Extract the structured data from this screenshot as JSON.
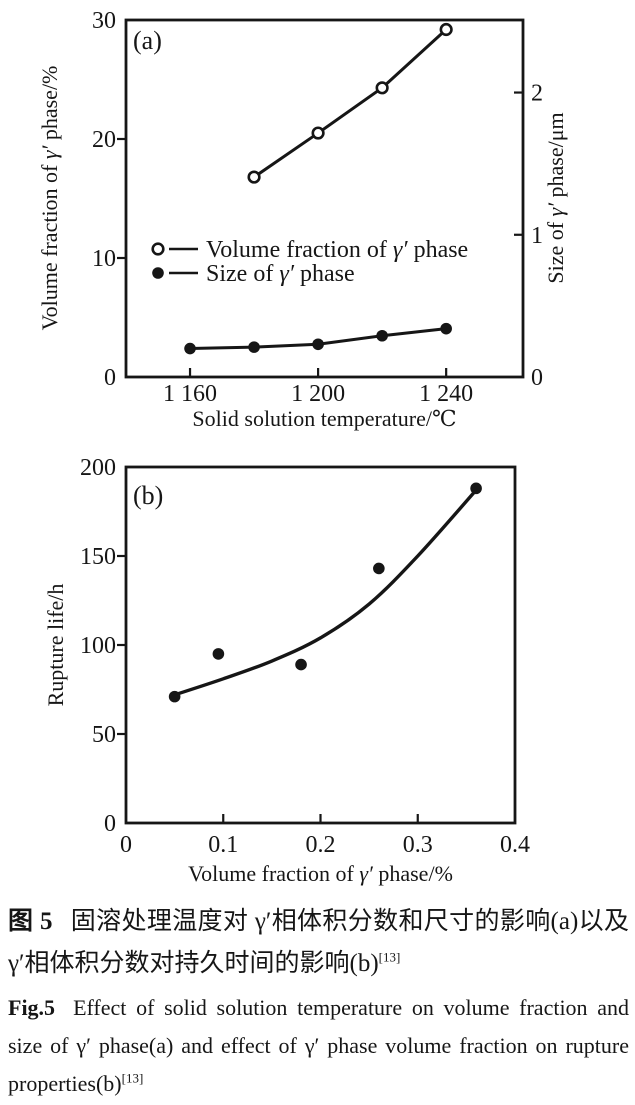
{
  "page": {
    "background": "#ffffff",
    "ink": "#161616"
  },
  "figure": {
    "caption": {
      "zh": {
        "label": "图 5",
        "text": "固溶处理温度对 γ′相体积分数和尺寸的影响(a)以及 γ′相体积分数对持久时间的影响(b)",
        "sup": "[13]"
      },
      "en": {
        "label": "Fig.5",
        "text": "Effect of solid solution temperature on volume fraction and size of γ′ phase(a) and effect of γ′ phase volume fraction on rupture properties(b)",
        "sup": "[13]"
      }
    }
  },
  "chart_data": [
    {
      "id": "a",
      "type": "line",
      "panel_label": "(a)",
      "xlabel": "Solid solution temperature/℃",
      "ylabel": "Volume fraction of γ′ phase/%",
      "y2label": "Size of γ′ phase/μm",
      "xlim": [
        1140,
        1264
      ],
      "ylim": [
        0,
        30
      ],
      "y2lim": [
        0,
        2.51
      ],
      "grid": false,
      "legend_position": "center-left",
      "x_ticks": [
        {
          "v": 1160,
          "label": "1 160",
          "mark": true
        },
        {
          "v": 1200,
          "label": "1 200",
          "mark": true
        },
        {
          "v": 1240,
          "label": "1 240",
          "mark": true
        }
      ],
      "y_ticks": [
        {
          "v": 0,
          "label": "0",
          "mark": false
        },
        {
          "v": 10,
          "label": "10",
          "mark": true
        },
        {
          "v": 20,
          "label": "20",
          "mark": true
        },
        {
          "v": 30,
          "label": "30",
          "mark": false
        }
      ],
      "y2_ticks": [
        {
          "v": 0,
          "label": "0",
          "mark": false
        },
        {
          "v": 1,
          "label": "1",
          "mark": true
        },
        {
          "v": 2,
          "label": "2",
          "mark": true
        }
      ],
      "series": [
        {
          "name": "Volume fraction of γ′ phase",
          "axis": "y",
          "marker": "open-circle",
          "x": [
            1180,
            1200,
            1220,
            1240
          ],
          "y": [
            16.8,
            20.5,
            24.3,
            29.2
          ]
        },
        {
          "name": "Size of γ′ phase",
          "axis": "y2",
          "marker": "filled-circle",
          "x": [
            1160,
            1180,
            1200,
            1220,
            1240
          ],
          "y": [
            0.2,
            0.21,
            0.23,
            0.29,
            0.34
          ]
        }
      ]
    },
    {
      "id": "b",
      "type": "scatter",
      "panel_label": "(b)",
      "xlabel": "Volume fraction of  γ′ phase/%",
      "ylabel": "Rupture life/h",
      "xlim": [
        0,
        0.4
      ],
      "ylim": [
        0,
        200
      ],
      "grid": false,
      "x_ticks": [
        {
          "v": 0,
          "label": "0",
          "mark": false
        },
        {
          "v": 0.1,
          "label": "0.1",
          "mark": true
        },
        {
          "v": 0.2,
          "label": "0.2",
          "mark": true
        },
        {
          "v": 0.3,
          "label": "0.3",
          "mark": true
        },
        {
          "v": 0.4,
          "label": "0.4",
          "mark": false
        }
      ],
      "y_ticks": [
        {
          "v": 0,
          "label": "0",
          "mark": false
        },
        {
          "v": 50,
          "label": "50",
          "mark": true
        },
        {
          "v": 100,
          "label": "100",
          "mark": true
        },
        {
          "v": 150,
          "label": "150",
          "mark": true
        },
        {
          "v": 200,
          "label": "200",
          "mark": false
        }
      ],
      "points": {
        "marker": "filled-circle",
        "x": [
          0.05,
          0.095,
          0.18,
          0.26,
          0.36
        ],
        "y": [
          71,
          95,
          89,
          143,
          188
        ]
      },
      "fit_curve": {
        "x": [
          0.05,
          0.1,
          0.15,
          0.2,
          0.25,
          0.3,
          0.36
        ],
        "y": [
          72,
          81,
          91,
          104,
          123,
          150,
          187
        ]
      }
    }
  ]
}
